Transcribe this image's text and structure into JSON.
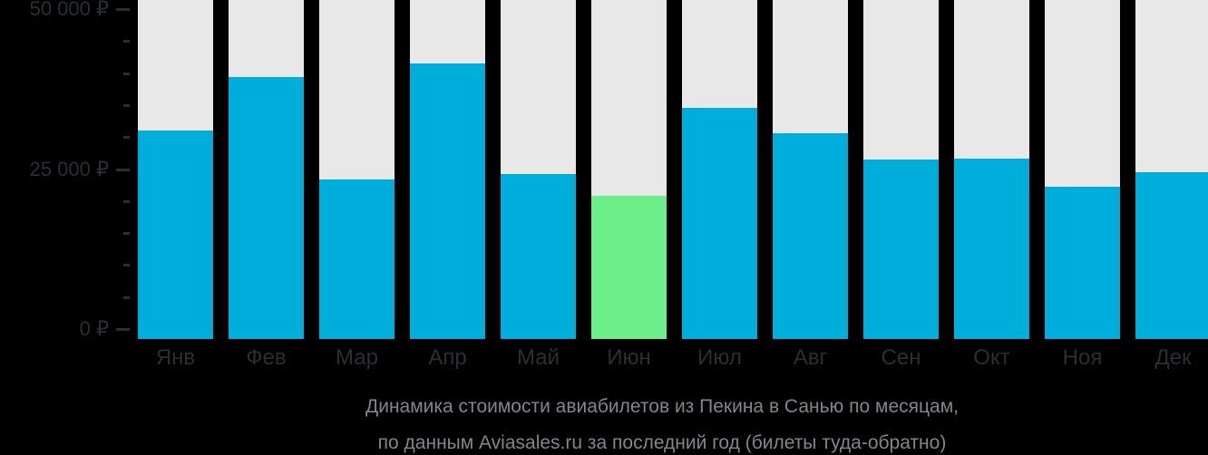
{
  "chart_data": {
    "type": "bar",
    "title": "Динамика стоимости авиабилетов из Пекина в Санью по месяцам,",
    "subtitle": "по данным Aviasales.ru за последний год (билеты туда-обратно)",
    "categories": [
      "Янв",
      "Фев",
      "Мар",
      "Апр",
      "Май",
      "Июн",
      "Июл",
      "Авг",
      "Сен",
      "Окт",
      "Ноя",
      "Дек"
    ],
    "values": [
      31000,
      39400,
      23400,
      41500,
      24200,
      20800,
      34600,
      30600,
      26500,
      26600,
      22200,
      24500
    ],
    "highlight_index": 5,
    "highlighted_category": "Июн",
    "xlabel": "",
    "ylabel": "",
    "ylim": [
      0,
      50000
    ],
    "y_axis": {
      "major_ticks": [
        {
          "value": 0,
          "label": "0 ₽"
        },
        {
          "value": 25000,
          "label": "25 000 ₽"
        },
        {
          "value": 50000,
          "label": "50 000 ₽"
        }
      ],
      "minor_tick_step": 5000
    },
    "legend": "none",
    "grid": "off",
    "colors": {
      "bar": "#00AEDC",
      "bar_highlight": "#6CEE89",
      "column_background": "#E8E8E8",
      "page_background": "#000000",
      "axis_text": "#2B2E32",
      "caption_text": "#82868B"
    }
  },
  "caption": {
    "line1": "Динамика стоимости авиабилетов из Пекина в Санью по месяцам,",
    "line2": "по данным Aviasales.ru за последний год (билеты туда-обратно)"
  }
}
